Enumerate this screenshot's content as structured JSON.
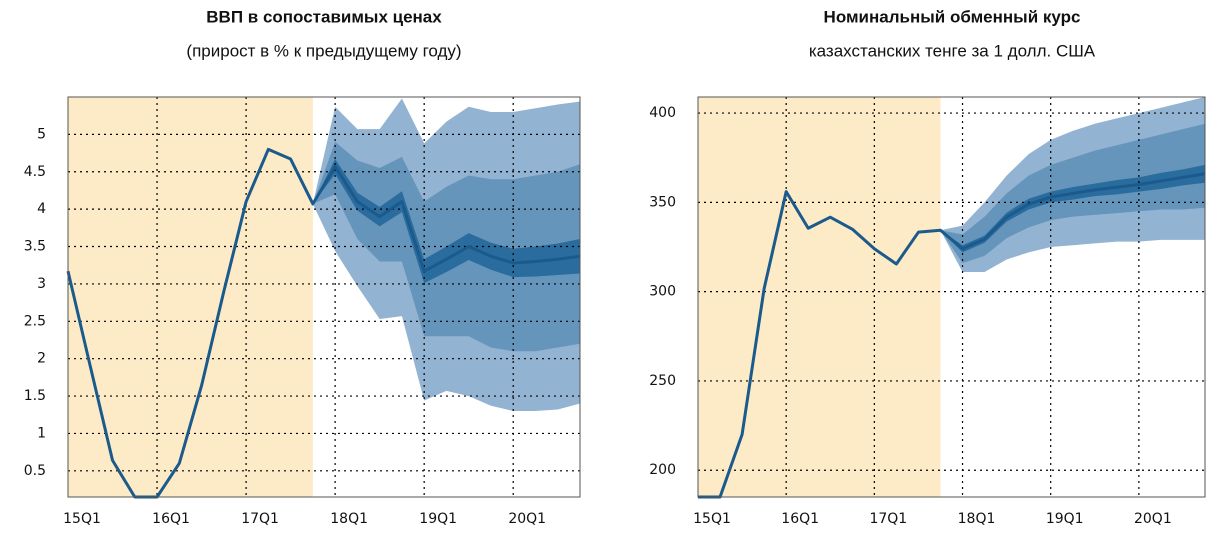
{
  "chart_data": [
    {
      "type": "line",
      "title": "ВВП в сопоставимых ценах",
      "subtitle": "(прирост в % к предыдущему году)",
      "categories": [
        "15Q1",
        null,
        null,
        null,
        "16Q1",
        null,
        null,
        null,
        "17Q1",
        null,
        null,
        null,
        "18Q1",
        null,
        null,
        null,
        "19Q1",
        null,
        null,
        null,
        "20Q1",
        null,
        null,
        null
      ],
      "series": [
        {
          "color": "#1b5a8c",
          "values": [
            3.17,
            1.9,
            0.64,
            0.15,
            0.15,
            0.6,
            1.64,
            2.9,
            4.1,
            4.8,
            4.67,
            4.07,
            4.57,
            4.1,
            3.9,
            4.1,
            3.17,
            3.33,
            3.5,
            3.37,
            3.28,
            3.3,
            3.33,
            3.37
          ]
        }
      ],
      "bands": [
        {
          "color": "#93b3d3",
          "upper": [
            null,
            null,
            null,
            null,
            null,
            null,
            null,
            null,
            null,
            null,
            null,
            4.07,
            5.37,
            5.07,
            5.07,
            5.48,
            4.88,
            5.17,
            5.37,
            5.3,
            5.3,
            5.35,
            5.4,
            5.44
          ],
          "lower": [
            null,
            null,
            null,
            null,
            null,
            null,
            null,
            null,
            null,
            null,
            null,
            4.07,
            3.44,
            2.97,
            2.53,
            2.57,
            1.44,
            1.57,
            1.5,
            1.37,
            1.3,
            1.3,
            1.32,
            1.4
          ]
        },
        {
          "color": "#6595bb",
          "upper": [
            null,
            null,
            null,
            null,
            null,
            null,
            null,
            null,
            null,
            null,
            null,
            4.07,
            4.9,
            4.65,
            4.55,
            4.7,
            4.1,
            4.3,
            4.45,
            4.4,
            4.4,
            4.45,
            4.5,
            4.6
          ],
          "lower": [
            null,
            null,
            null,
            null,
            null,
            null,
            null,
            null,
            null,
            null,
            null,
            4.07,
            4.2,
            3.6,
            3.3,
            3.3,
            2.3,
            2.3,
            2.3,
            2.15,
            2.1,
            2.1,
            2.15,
            2.2
          ]
        },
        {
          "color": "#2a6c9e",
          "upper": [
            null,
            null,
            null,
            null,
            null,
            null,
            null,
            null,
            null,
            null,
            null,
            4.07,
            4.67,
            4.22,
            4.03,
            4.24,
            3.33,
            3.5,
            3.68,
            3.55,
            3.47,
            3.5,
            3.54,
            3.6
          ],
          "lower": [
            null,
            null,
            null,
            null,
            null,
            null,
            null,
            null,
            null,
            null,
            null,
            4.07,
            4.47,
            3.98,
            3.77,
            3.96,
            3.01,
            3.16,
            3.32,
            3.19,
            3.09,
            3.1,
            3.12,
            3.14
          ]
        }
      ],
      "ylim": [
        0.15,
        5.5
      ],
      "yticks": [
        0.5,
        1,
        1.5,
        2,
        2.5,
        3,
        3.5,
        4,
        4.5,
        5
      ],
      "grid": true
    },
    {
      "type": "line",
      "title": "Номинальный обменный курс",
      "subtitle": "казахстанских тенге за 1 долл. США",
      "categories": [
        "15Q1",
        null,
        null,
        null,
        "16Q1",
        null,
        null,
        null,
        "17Q1",
        null,
        null,
        null,
        "18Q1",
        null,
        null,
        null,
        "19Q1",
        null,
        null,
        null,
        "20Q1",
        null,
        null,
        null
      ],
      "series": [
        {
          "color": "#1b5a8c",
          "values": [
            185,
            185,
            220,
            301.7,
            356,
            335.5,
            341.7,
            335,
            324,
            315.5,
            333.3,
            334.4,
            324,
            329.4,
            341.7,
            349,
            353,
            355,
            357,
            358.5,
            360,
            362,
            364,
            366
          ]
        }
      ],
      "bands": [
        {
          "color": "#93b3d3",
          "upper": [
            null,
            null,
            null,
            null,
            null,
            null,
            null,
            null,
            null,
            null,
            null,
            334.4,
            337,
            350,
            365,
            377,
            385,
            390,
            394,
            397,
            400,
            403,
            406,
            409
          ],
          "lower": [
            null,
            null,
            null,
            null,
            null,
            null,
            null,
            null,
            null,
            null,
            null,
            334.4,
            311,
            311,
            318,
            322,
            325,
            326,
            327,
            328,
            328,
            329,
            329,
            329
          ]
        },
        {
          "color": "#6595bb",
          "upper": [
            null,
            null,
            null,
            null,
            null,
            null,
            null,
            null,
            null,
            null,
            null,
            334.4,
            332,
            342,
            355,
            365,
            371,
            375,
            379,
            382,
            385,
            388,
            391,
            394
          ],
          "lower": [
            null,
            null,
            null,
            null,
            null,
            null,
            null,
            null,
            null,
            null,
            null,
            334.4,
            316,
            320,
            330,
            336,
            340,
            342,
            343,
            344,
            345,
            346,
            346,
            347
          ]
        },
        {
          "color": "#2a6c9e",
          "upper": [
            null,
            null,
            null,
            null,
            null,
            null,
            null,
            null,
            null,
            null,
            null,
            334.4,
            326,
            331.4,
            344.2,
            352,
            356,
            358.5,
            360.5,
            362.5,
            364,
            366.5,
            368.5,
            371
          ],
          "lower": [
            null,
            null,
            null,
            null,
            null,
            null,
            null,
            null,
            null,
            null,
            null,
            334.4,
            322,
            327.4,
            339.2,
            346,
            350,
            351.5,
            353.5,
            354.5,
            356,
            357.5,
            359.5,
            361
          ]
        }
      ],
      "ylim": [
        185,
        409
      ],
      "yticks": [
        200,
        250,
        300,
        350,
        400
      ],
      "grid": true
    }
  ]
}
